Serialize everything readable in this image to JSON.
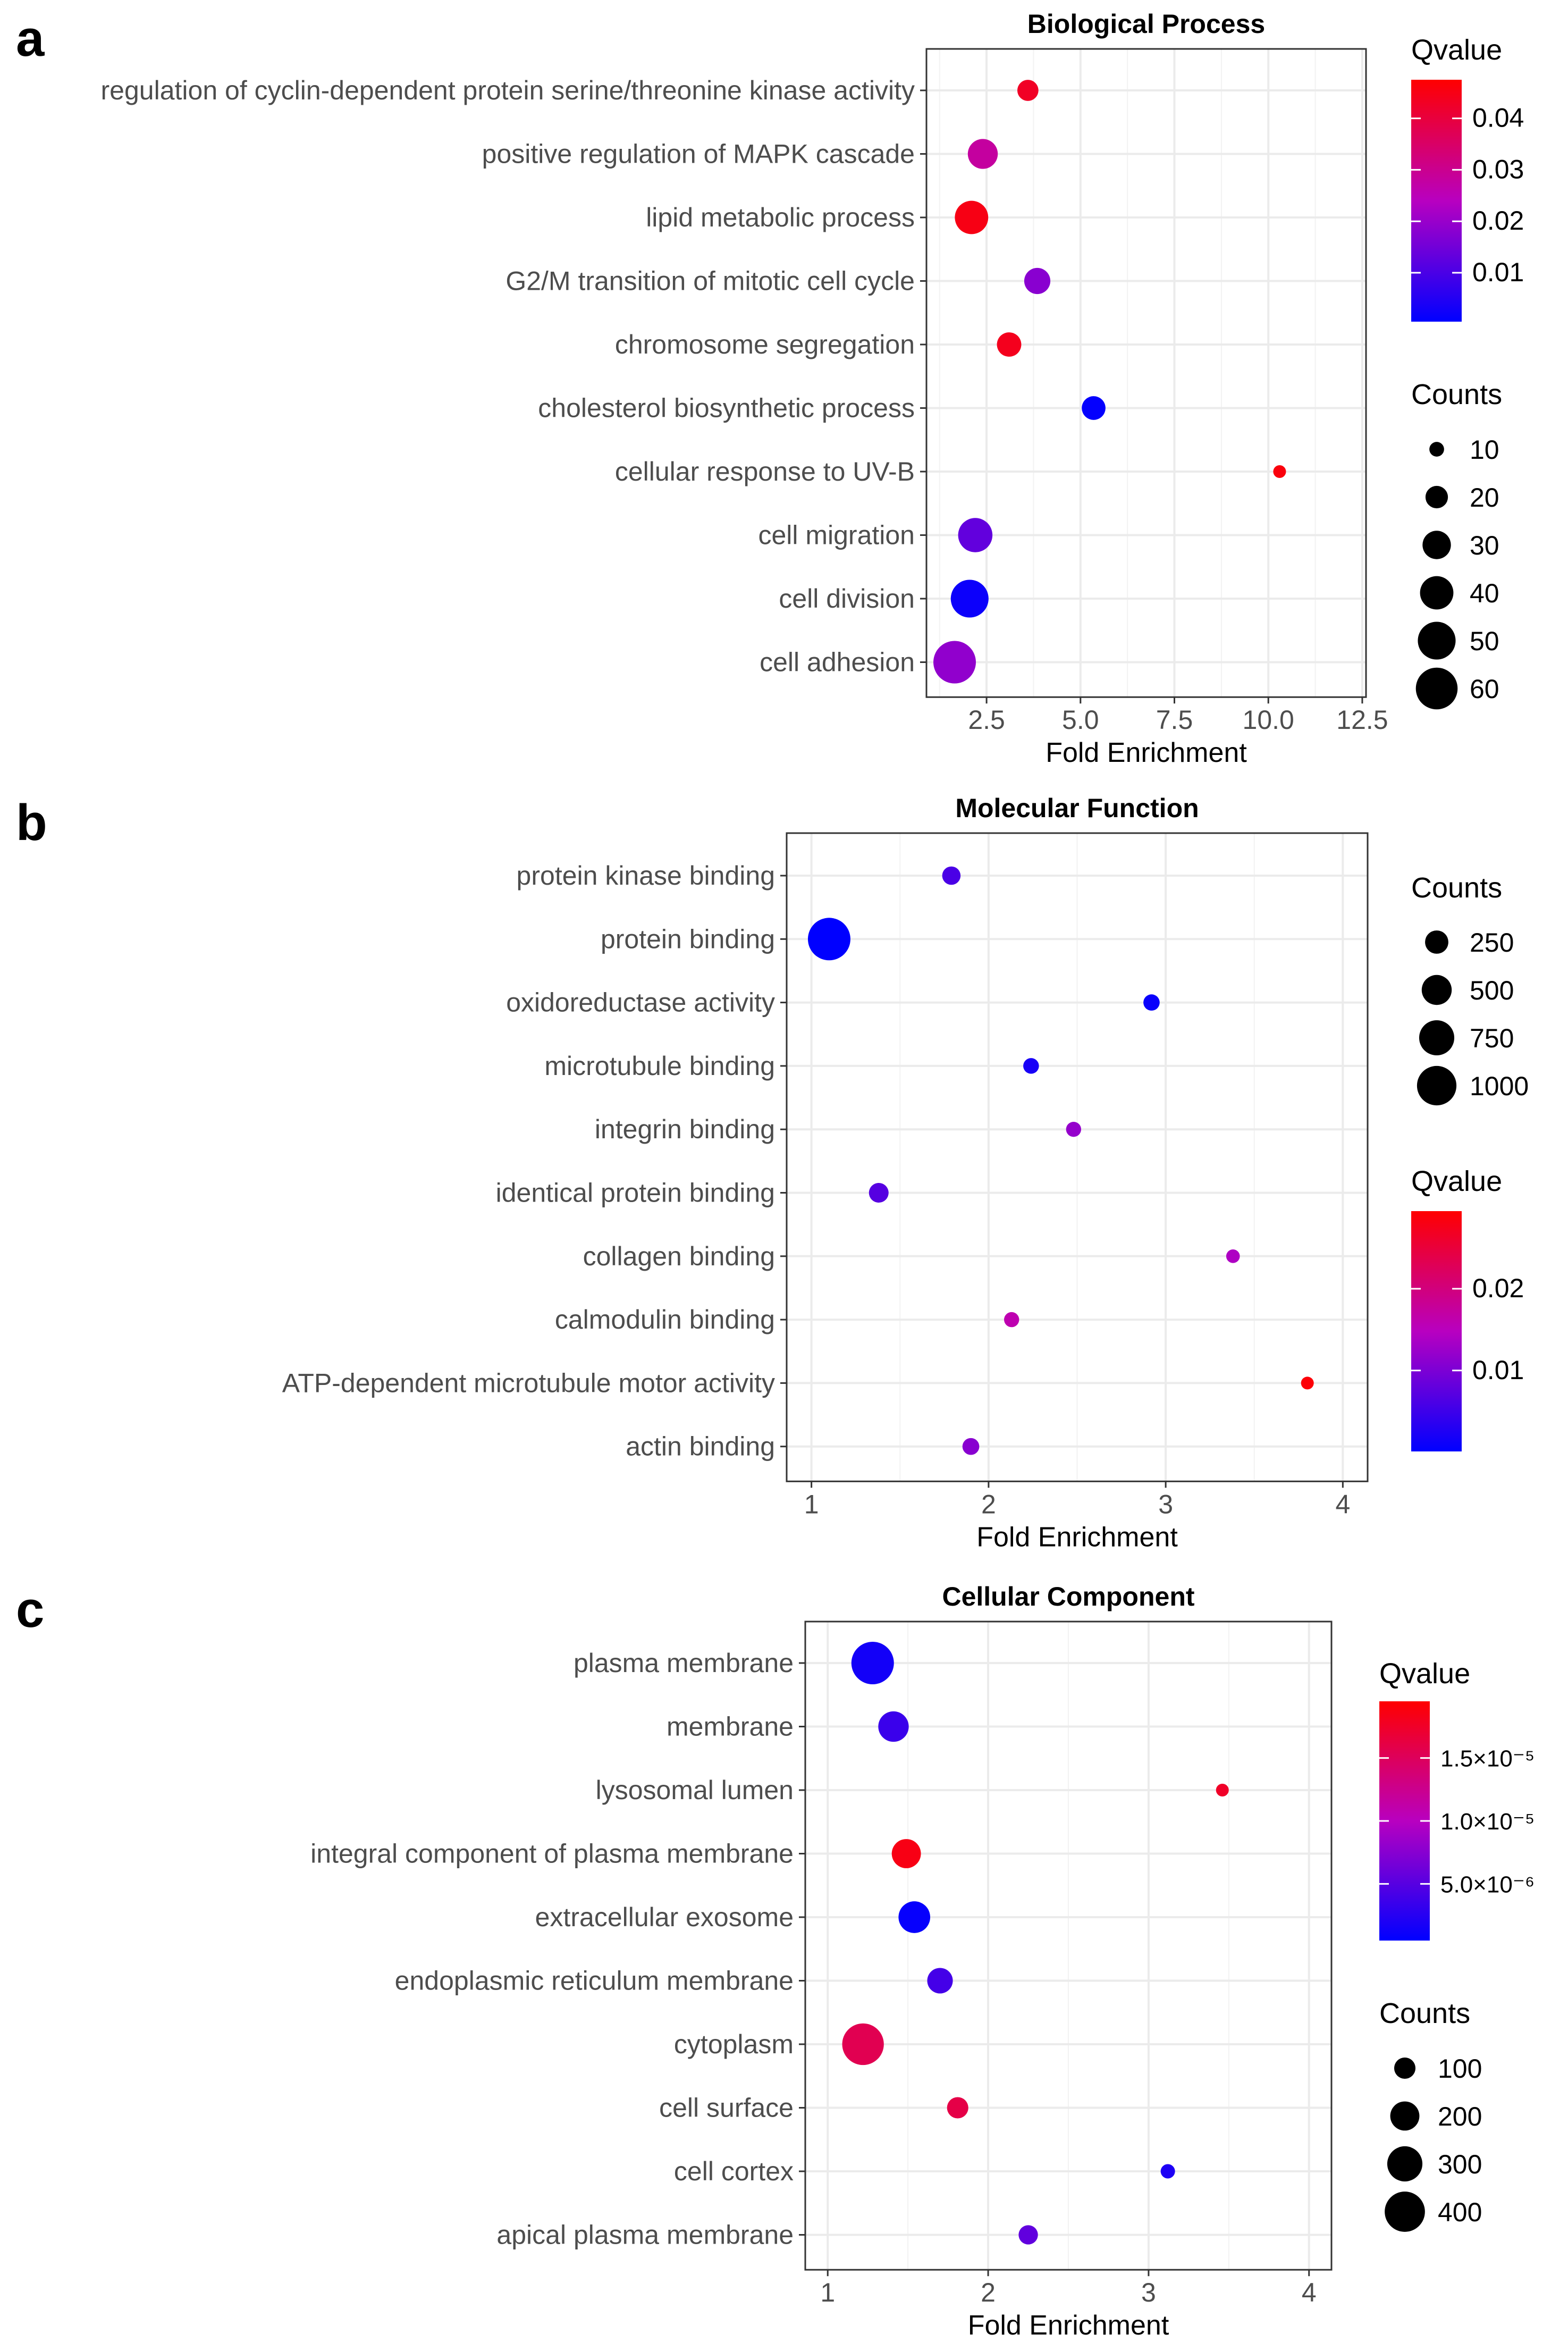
{
  "chart_data": [
    {
      "panel": "a",
      "type": "scatter",
      "title": "Biological Process",
      "xlabel": "Fold Enrichment",
      "ylabel": "",
      "xlim": [
        0.9,
        12.6
      ],
      "xticks": [
        2.5,
        5.0,
        7.5,
        10.0,
        12.5
      ],
      "xtick_labels": [
        "2.5",
        "5.0",
        "7.5",
        "10.0",
        "12.5"
      ],
      "grid": true,
      "categories": [
        "regulation of cyclin-dependent protein serine/threonine kinase activity",
        "positive regulation of MAPK cascade",
        "lipid metabolic process",
        "G2/M transition of mitotic cell cycle",
        "chromosome segregation",
        "cholesterol biosynthetic process",
        "cellular response to UV-B",
        "cell migration",
        "cell division",
        "cell adhesion"
      ],
      "fold_enrichment": [
        3.6,
        2.4,
        2.1,
        3.85,
        3.1,
        5.35,
        10.3,
        2.2,
        2.05,
        1.65
      ],
      "counts": [
        18,
        33,
        40,
        26,
        23,
        22,
        8,
        42,
        50,
        62
      ],
      "qvalue": [
        0.043,
        0.028,
        0.045,
        0.018,
        0.044,
        0.001,
        0.046,
        0.013,
        0.002,
        0.019
      ],
      "size_legend": {
        "title": "Counts",
        "breaks": [
          10,
          20,
          30,
          40,
          50,
          60
        ],
        "labels": [
          "10",
          "20",
          "30",
          "40",
          "50",
          "60"
        ],
        "range": [
          8,
          62
        ]
      },
      "color_legend": {
        "title": "Qvalue",
        "breaks": [
          0.04,
          0.03,
          0.02,
          0.01
        ],
        "labels": [
          "0.04",
          "0.03",
          "0.02",
          "0.01"
        ],
        "range": [
          0.0005,
          0.0475
        ],
        "low_color": "#0000ff",
        "high_color": "#ff0000"
      },
      "legend_order": "color-first"
    },
    {
      "panel": "b",
      "type": "scatter",
      "title": "Molecular Function",
      "xlabel": "Fold Enrichment",
      "ylabel": "",
      "xlim": [
        0.86,
        4.14
      ],
      "xticks": [
        1,
        2,
        3,
        4
      ],
      "xtick_labels": [
        "1",
        "2",
        "3",
        "4"
      ],
      "grid": true,
      "categories": [
        "protein kinase binding",
        "protein binding",
        "oxidoreductase activity",
        "microtubule binding",
        "integrin binding",
        "identical protein binding",
        "collagen binding",
        "calmodulin binding",
        "ATP-dependent microtubule motor activity",
        "actin binding"
      ],
      "fold_enrichment": [
        1.79,
        1.1,
        2.92,
        2.24,
        2.48,
        1.38,
        3.38,
        2.13,
        3.8,
        1.9
      ],
      "counts": [
        120,
        1200,
        80,
        70,
        60,
        150,
        40,
        60,
        30,
        90
      ],
      "qvalue": [
        0.006,
        0.0001,
        0.0008,
        0.002,
        0.012,
        0.007,
        0.014,
        0.016,
        0.029,
        0.011
      ],
      "size_legend": {
        "title": "Counts",
        "breaks": [
          250,
          500,
          750,
          1000
        ],
        "labels": [
          "250",
          "500",
          "750",
          "1000"
        ],
        "range": [
          30,
          1200
        ]
      },
      "color_legend": {
        "title": "Qvalue",
        "breaks": [
          0.02,
          0.01
        ],
        "labels": [
          "0.02",
          "0.01"
        ],
        "range": [
          0.0001,
          0.0295
        ],
        "low_color": "#0000ff",
        "high_color": "#ff0000"
      },
      "legend_order": "size-first"
    },
    {
      "panel": "c",
      "type": "scatter",
      "title": "Cellular Component",
      "xlabel": "Fold Enrichment",
      "ylabel": "",
      "xlim": [
        0.86,
        4.14
      ],
      "xticks": [
        1,
        2,
        3,
        4
      ],
      "xtick_labels": [
        "1",
        "2",
        "3",
        "4"
      ],
      "grid": true,
      "categories": [
        "plasma membrane",
        "membrane",
        "lysosomal lumen",
        "integral component of plasma membrane",
        "extracellular exosome",
        "endoplasmic reticulum membrane",
        "cytoplasm",
        "cell surface",
        "cell cortex",
        "apical plasma membrane"
      ],
      "fold_enrichment": [
        1.28,
        1.41,
        3.46,
        1.49,
        1.54,
        1.7,
        1.22,
        1.81,
        3.12,
        2.25
      ],
      "counts": [
        450,
        220,
        30,
        200,
        240,
        150,
        430,
        100,
        40,
        80
      ],
      "qvalue": [
        1.5e-06,
        3.5e-06,
        1.75e-05,
        1.85e-05,
        8e-07,
        4e-06,
        1.55e-05,
        1.6e-05,
        2e-06,
        5.5e-06
      ],
      "size_legend": {
        "title": "Counts",
        "breaks": [
          100,
          200,
          300,
          400
        ],
        "labels": [
          "100",
          "200",
          "300",
          "400"
        ],
        "range": [
          30,
          450
        ]
      },
      "color_legend": {
        "title": "Qvalue",
        "breaks": [
          1.5e-05,
          1e-05,
          5e-06
        ],
        "labels": [
          "1.5×10⁻⁵",
          "1.0×10⁻⁵",
          "5.0×10⁻⁶"
        ],
        "range": [
          5e-07,
          1.95e-05
        ],
        "low_color": "#0000ff",
        "high_color": "#ff0000"
      },
      "legend_order": "color-first"
    }
  ]
}
